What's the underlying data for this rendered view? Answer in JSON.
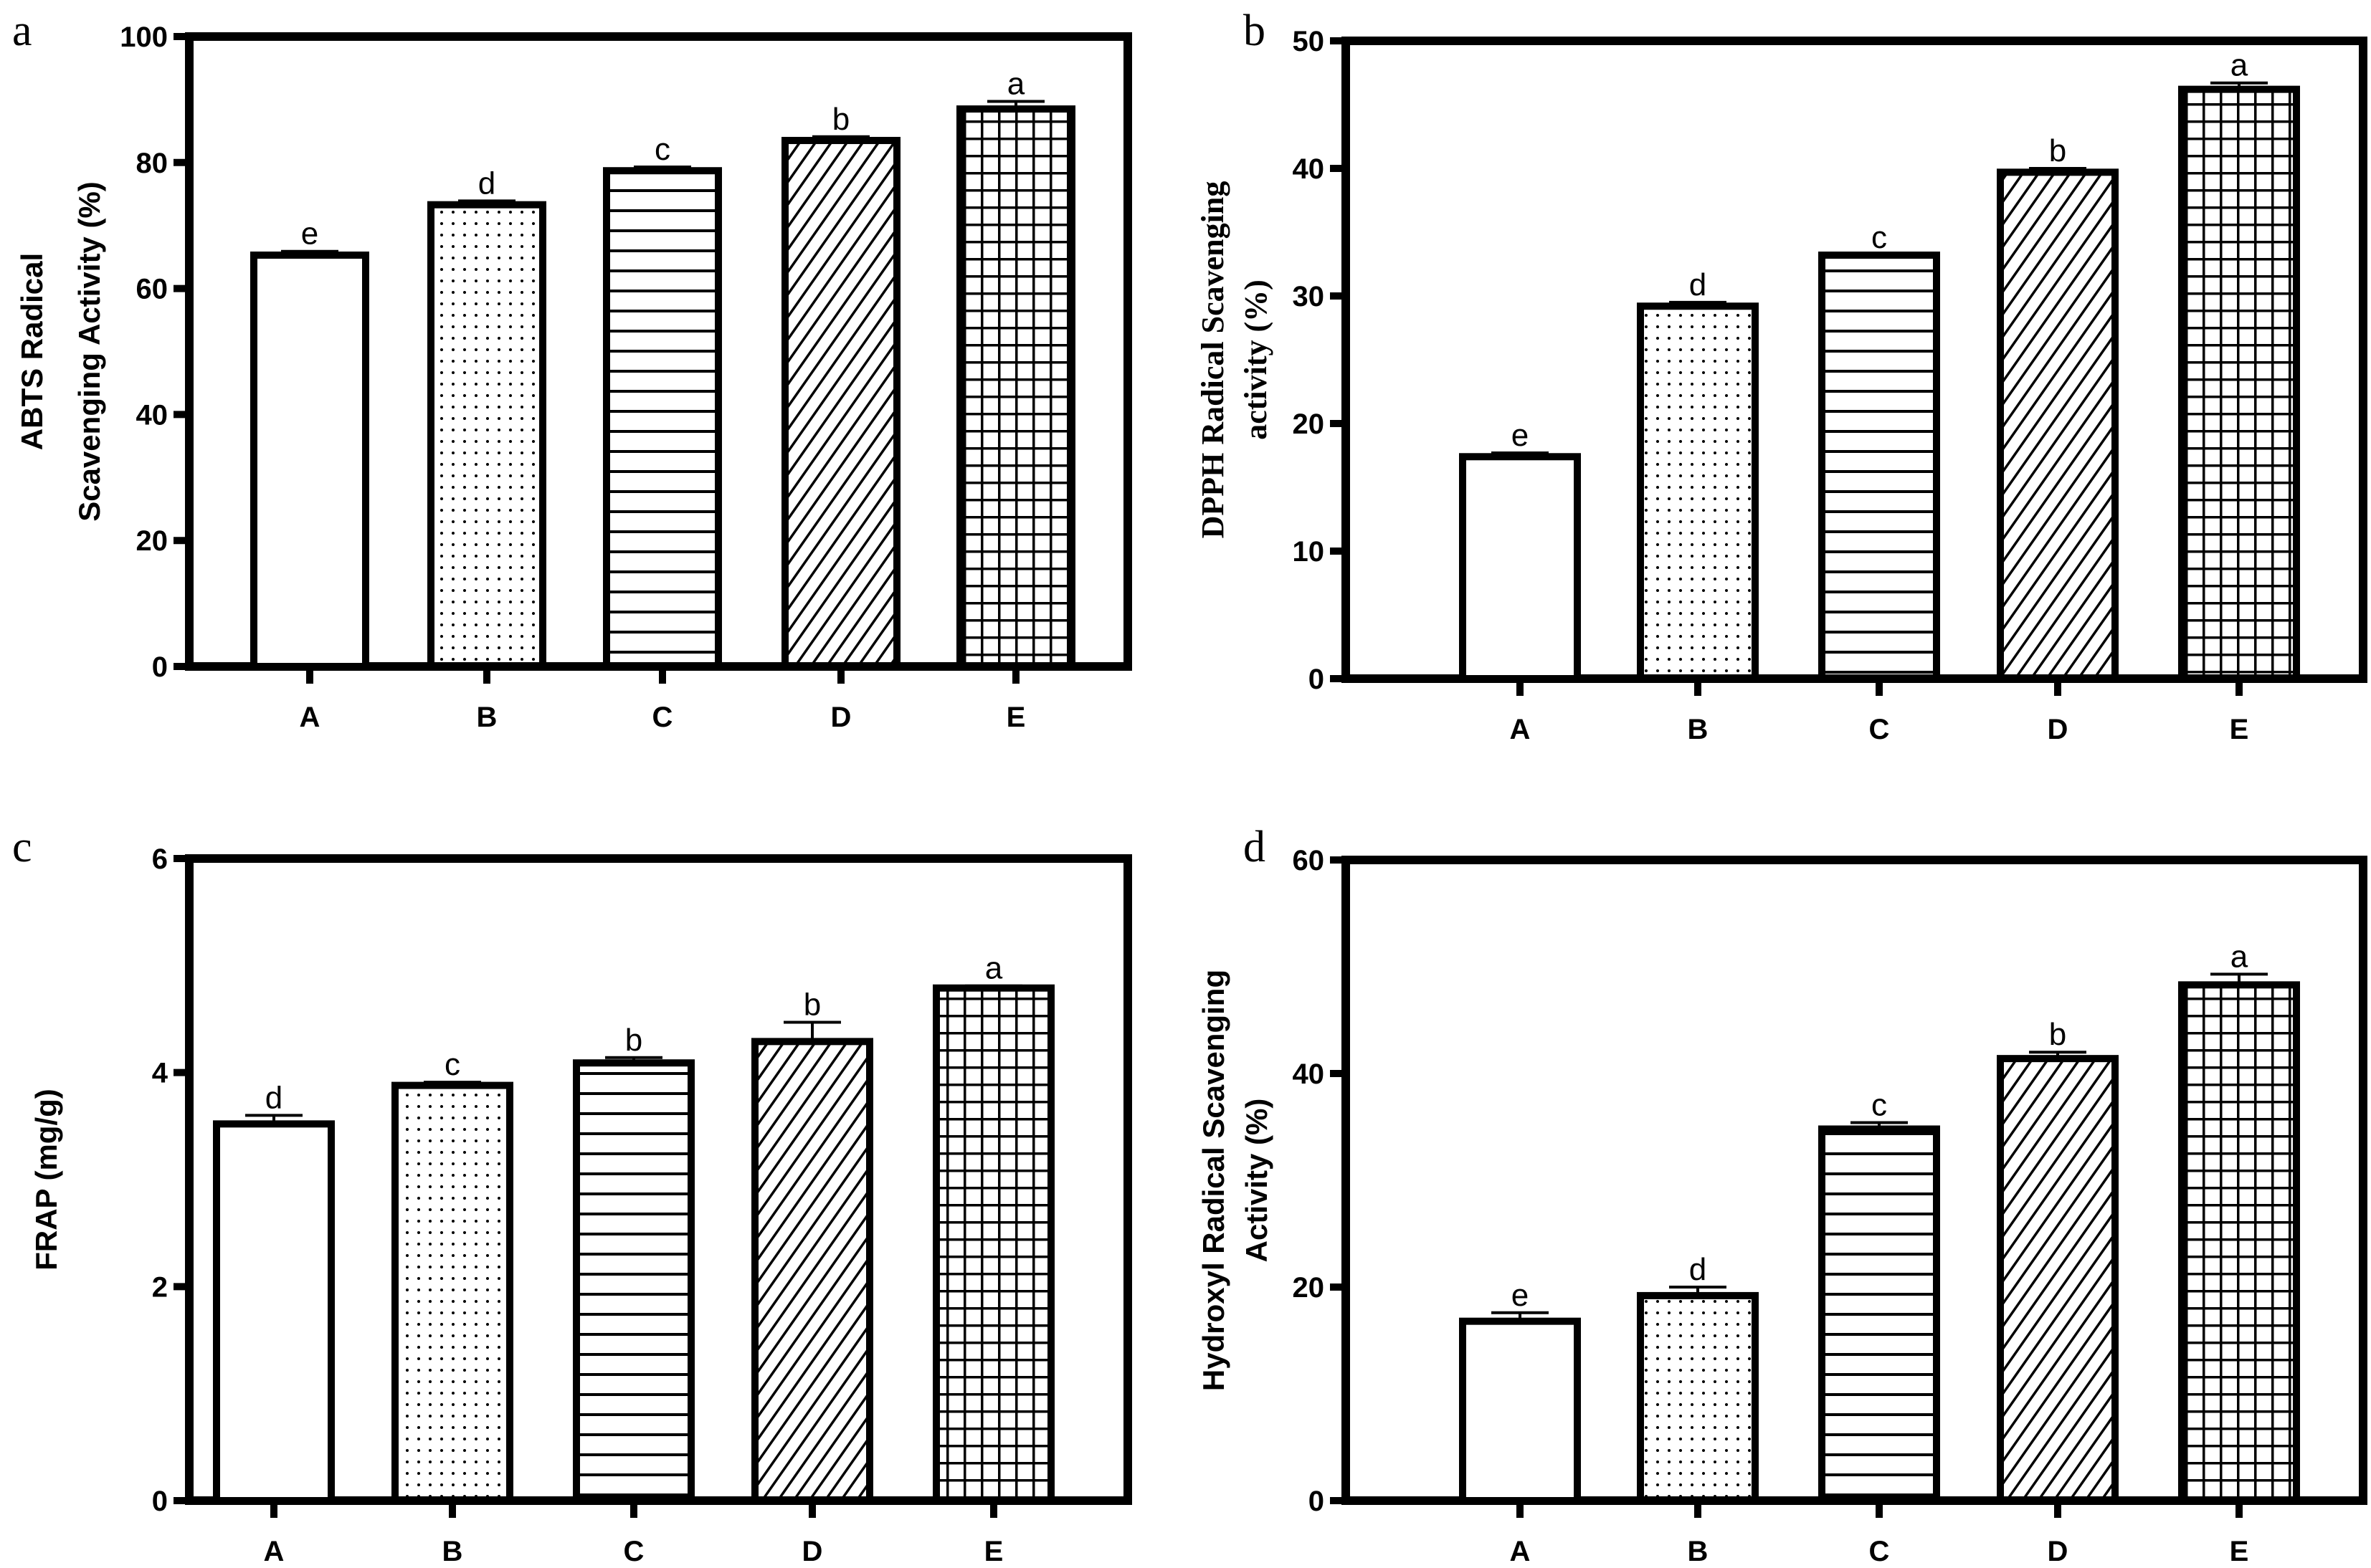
{
  "chart_data": [
    {
      "panel": "a",
      "type": "bar",
      "ylabel": [
        "ABTS Radical",
        "Scavenging Activity (%)"
      ],
      "categories": [
        "A",
        "B",
        "C",
        "D",
        "E"
      ],
      "values": [
        65.3,
        73.3,
        78.7,
        83.5,
        88.5
      ],
      "errors": [
        0.6,
        0.6,
        0.6,
        0.6,
        1.2
      ],
      "significance": [
        "e",
        "d",
        "c",
        "b",
        "a"
      ],
      "ylim": [
        0,
        100
      ],
      "yticks": [
        0,
        20,
        40,
        60,
        80,
        100
      ],
      "grid": false,
      "legend": "none"
    },
    {
      "panel": "b",
      "type": "bar",
      "ylabel": [
        "DPPH Radical  Scavenging",
        "activity (%)"
      ],
      "categories": [
        "A",
        "B",
        "C",
        "D",
        "E"
      ],
      "values": [
        17.4,
        29.2,
        33.2,
        39.7,
        46.2
      ],
      "errors": [
        0.3,
        0.3,
        0.0,
        0.3,
        0.5
      ],
      "significance": [
        "e",
        "d",
        "c",
        "b",
        "a"
      ],
      "ylim": [
        0,
        50
      ],
      "yticks": [
        0,
        10,
        20,
        30,
        40,
        50
      ],
      "grid": false,
      "legend": "none"
    },
    {
      "panel": "c",
      "type": "bar",
      "ylabel": [
        "FRAP (mg/g)"
      ],
      "categories": [
        "A",
        "B",
        "C",
        "D",
        "E"
      ],
      "values": [
        3.52,
        3.88,
        4.09,
        4.29,
        4.79
      ],
      "errors": [
        0.08,
        0.03,
        0.05,
        0.18,
        0.02
      ],
      "significance": [
        "d",
        "c",
        "b",
        "b",
        "a"
      ],
      "ylim": [
        0,
        6
      ],
      "yticks": [
        0,
        2,
        4,
        6
      ],
      "grid": false,
      "legend": "none"
    },
    {
      "panel": "d",
      "type": "bar",
      "ylabel": [
        "Hydroxyl Radical Scavenging",
        "Activity (%)"
      ],
      "categories": [
        "A",
        "B",
        "C",
        "D",
        "E"
      ],
      "values": [
        16.8,
        19.2,
        34.8,
        41.4,
        48.3
      ],
      "errors": [
        0.8,
        0.8,
        0.6,
        0.6,
        1.0
      ],
      "significance": [
        "e",
        "d",
        "c",
        "b",
        "a"
      ],
      "ylim": [
        0,
        60
      ],
      "yticks": [
        0,
        20,
        40,
        60
      ],
      "grid": false,
      "legend": "none"
    }
  ],
  "bar_patterns": [
    "empty",
    "dots",
    "horizontal-lines",
    "diagonal-hatch",
    "grid"
  ],
  "colors": {
    "stroke": "#000000",
    "fill": "#ffffff"
  }
}
